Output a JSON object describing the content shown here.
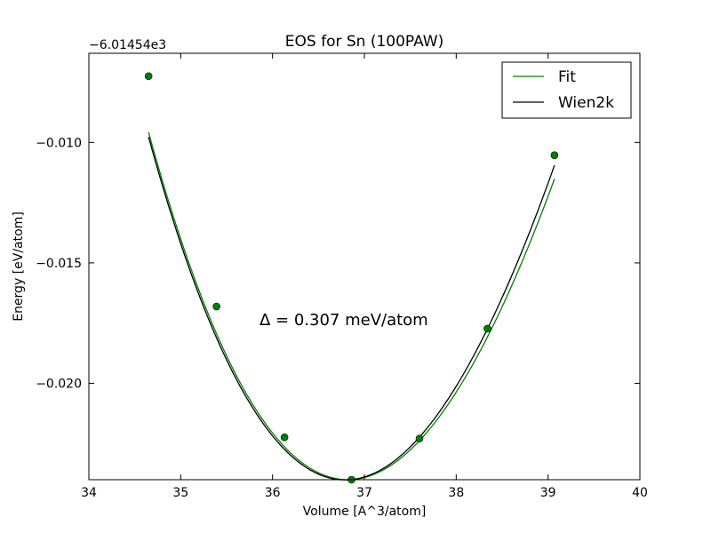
{
  "chart_data": {
    "type": "line",
    "title": "EOS for Sn (100PAW)",
    "xlabel": "Volume [A^3/atom]",
    "ylabel": "Energy [eV/atom]",
    "y_offset_text": "−6.01454e3",
    "xlim": [
      34,
      40
    ],
    "ylim": [
      -0.024,
      -0.0063
    ],
    "x_ticks": [
      34,
      35,
      36,
      37,
      38,
      39,
      40
    ],
    "x_tick_labels": [
      "34",
      "35",
      "36",
      "37",
      "38",
      "39",
      "40"
    ],
    "y_ticks": [
      -0.01,
      -0.015,
      -0.02
    ],
    "y_tick_labels": [
      "−0.010",
      "−0.015",
      "−0.020"
    ],
    "grid": false,
    "legend": {
      "position": "upper-right",
      "entries": [
        {
          "label": "Fit",
          "color": "#008000"
        },
        {
          "label": "Wien2k",
          "color": "#000000"
        }
      ]
    },
    "annotation": "Δ = 0.307 meV/atom",
    "points": {
      "color": "#008000",
      "x": [
        34.65,
        35.39,
        36.13,
        36.86,
        37.6,
        38.34,
        39.07
      ],
      "y": [
        -0.00725,
        -0.01681,
        -0.02224,
        -0.024,
        -0.02229,
        -0.01773,
        -0.01053
      ]
    },
    "series": [
      {
        "name": "Fit",
        "color": "#008000",
        "curve": {
          "v0": 36.82,
          "e_min": -0.024,
          "curvature": 0.00277,
          "cubic": -0.000135
        },
        "x_range": [
          34.65,
          39.07
        ]
      },
      {
        "name": "Wien2k",
        "color": "#000000",
        "curve": {
          "v0": 36.79,
          "e_min": -0.02401,
          "curvature": 0.00282,
          "cubic": -0.000135
        },
        "x_range": [
          34.65,
          39.07
        ]
      }
    ]
  }
}
